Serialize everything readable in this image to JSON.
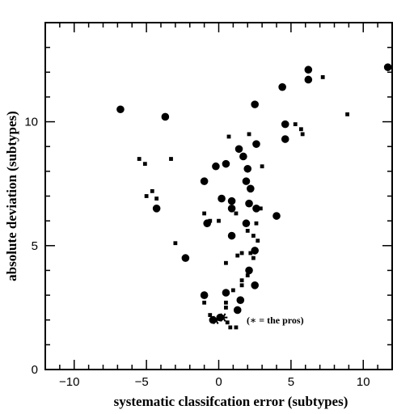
{
  "chart_data": {
    "type": "scatter",
    "title": "",
    "xlabel": "systematic classifcation error (subtypes)",
    "ylabel": "absolute deviation (subtypes)",
    "xlim": [
      -12.0,
      12.0
    ],
    "ylim": [
      0,
      14.0
    ],
    "x_ticks": [
      -10,
      -5,
      0,
      5,
      10
    ],
    "y_ticks": [
      0,
      5,
      10
    ],
    "annotation": "(∗ = the pros)",
    "grid": false,
    "series": [
      {
        "marker": "filled-circle-large",
        "points": [
          [
            -6.8,
            10.5
          ],
          [
            -3.7,
            10.2
          ],
          [
            11.7,
            12.2
          ],
          [
            6.2,
            12.1
          ],
          [
            6.2,
            11.7
          ],
          [
            4.4,
            11.4
          ],
          [
            2.5,
            10.7
          ],
          [
            4.6,
            9.9
          ],
          [
            4.6,
            9.3
          ],
          [
            2.6,
            9.1
          ],
          [
            1.4,
            8.9
          ],
          [
            1.7,
            8.6
          ],
          [
            0.5,
            8.3
          ],
          [
            -0.2,
            8.2
          ],
          [
            2.0,
            8.1
          ],
          [
            -1.0,
            7.6
          ],
          [
            1.9,
            7.6
          ],
          [
            2.2,
            7.3
          ],
          [
            0.2,
            6.9
          ],
          [
            0.9,
            6.8
          ],
          [
            2.1,
            6.7
          ],
          [
            0.9,
            6.5
          ],
          [
            2.6,
            6.5
          ],
          [
            -4.3,
            6.5
          ],
          [
            4.0,
            6.2
          ],
          [
            -0.8,
            5.9
          ],
          [
            1.9,
            5.9
          ],
          [
            0.9,
            5.4
          ],
          [
            2.5,
            4.8
          ],
          [
            -2.3,
            4.5
          ],
          [
            2.1,
            4.0
          ],
          [
            0.5,
            3.1
          ],
          [
            2.5,
            3.4
          ],
          [
            -1.0,
            3.0
          ],
          [
            1.5,
            2.8
          ],
          [
            1.3,
            2.4
          ],
          [
            0.1,
            2.1
          ],
          [
            -0.4,
            2.0
          ]
        ]
      },
      {
        "marker": "open-square-small",
        "points": [
          [
            -5.5,
            8.5
          ],
          [
            -5.1,
            8.3
          ],
          [
            -3.3,
            8.5
          ],
          [
            -4.6,
            7.2
          ],
          [
            -5.0,
            7.0
          ],
          [
            -4.3,
            6.9
          ],
          [
            -1.0,
            6.3
          ],
          [
            -0.6,
            6.0
          ],
          [
            0.0,
            6.0
          ],
          [
            1.2,
            6.3
          ],
          [
            2.9,
            6.5
          ],
          [
            2.6,
            5.9
          ],
          [
            2.0,
            5.6
          ],
          [
            2.4,
            5.4
          ],
          [
            2.7,
            5.2
          ],
          [
            -3.0,
            5.1
          ],
          [
            1.6,
            4.7
          ],
          [
            1.3,
            4.6
          ],
          [
            2.2,
            4.7
          ],
          [
            0.5,
            4.3
          ],
          [
            2.0,
            3.8
          ],
          [
            1.6,
            3.6
          ],
          [
            1.6,
            3.4
          ],
          [
            1.0,
            3.2
          ],
          [
            0.5,
            2.7
          ],
          [
            0.5,
            2.5
          ],
          [
            -1.0,
            2.7
          ],
          [
            -0.6,
            2.2
          ],
          [
            0.6,
            1.9
          ],
          [
            1.2,
            1.7
          ],
          [
            0.8,
            1.7
          ],
          [
            5.3,
            9.9
          ],
          [
            5.7,
            9.7
          ],
          [
            5.8,
            9.5
          ],
          [
            7.2,
            11.8
          ],
          [
            2.1,
            9.5
          ],
          [
            0.7,
            9.4
          ],
          [
            3.0,
            8.2
          ],
          [
            8.9,
            10.3
          ],
          [
            2.4,
            4.5
          ]
        ]
      },
      {
        "name": "the pros",
        "marker": "asterisk",
        "points": [
          [
            -0.2,
            2.0
          ],
          [
            0.3,
            2.1
          ]
        ]
      }
    ]
  }
}
